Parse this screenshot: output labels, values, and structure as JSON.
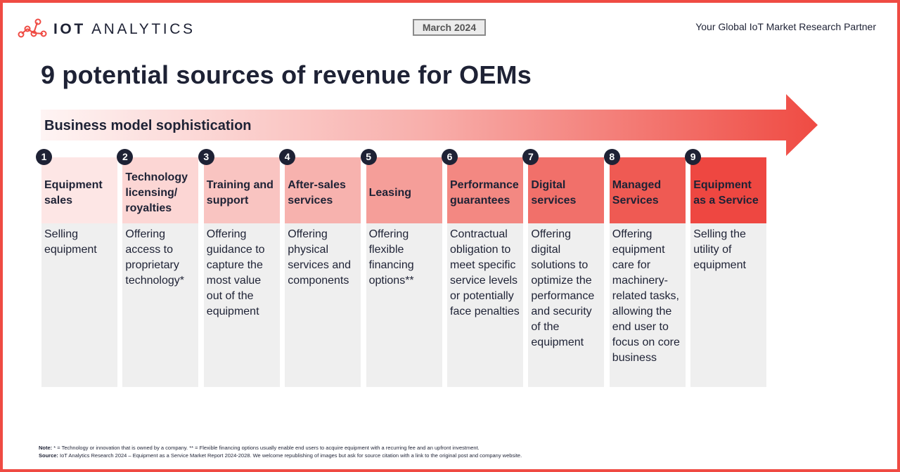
{
  "brand": {
    "logo_word1": "IOT",
    "logo_word2": "ANALYTICS",
    "logo_icon": "network-nodes-icon"
  },
  "date_badge": "March 2024",
  "tagline": "Your Global IoT Market Research Partner",
  "title": "9 potential sources of revenue for OEMs",
  "arrow_label": "Business model sophistication",
  "colors": {
    "accent": "#ef4b43",
    "dark": "#1e2235",
    "desc_bg": "#efefef"
  },
  "stages": [
    {
      "number": "1",
      "heading": "Equipment sales",
      "description": "Selling equipment",
      "color": "#fde6e5"
    },
    {
      "number": "2",
      "heading": "Technology licensing/ royalties",
      "description": "Offering access to proprietary technology*",
      "color": "#fcd6d4"
    },
    {
      "number": "3",
      "heading": "Training and support",
      "description": "Offering guidance to capture the most value out of the equipment",
      "color": "#f9c4c1"
    },
    {
      "number": "4",
      "heading": "After-sales services",
      "description": "Offering physical services and components",
      "color": "#f7b2ae"
    },
    {
      "number": "5",
      "heading": "Leasing",
      "description": "Offering flexible financing options**",
      "color": "#f59e99"
    },
    {
      "number": "6",
      "heading": "Performance guarantees",
      "description": "Contractual obligation to meet specific service levels or potentially face penalties",
      "color": "#f38882"
    },
    {
      "number": "7",
      "heading": "Digital services",
      "description": "Offering digital solutions to optimize the performance and security of the equipment",
      "color": "#f1706a"
    },
    {
      "number": "8",
      "heading": "Managed Services",
      "description": "Offering equipment care for machinery-related tasks, allowing the end user to focus on core business",
      "color": "#ef5a53"
    },
    {
      "number": "9",
      "heading": "Equipment as a Service",
      "description": "Selling the utility of equipment",
      "color": "#ee4741"
    }
  ],
  "notes": {
    "note_label": "Note:",
    "note_text": " * = Technology or innovation that is owned by a company. ** = Flexible financing options usually enable end users to acquire equipment with a recurring fee and an upfront investment.",
    "source_label": "Source:",
    "source_text": " IoT Analytics Research 2024 – Equipment as a Service Market Report 2024-2028. We welcome republishing of images but ask for source citation with a link to the original post and company website."
  }
}
